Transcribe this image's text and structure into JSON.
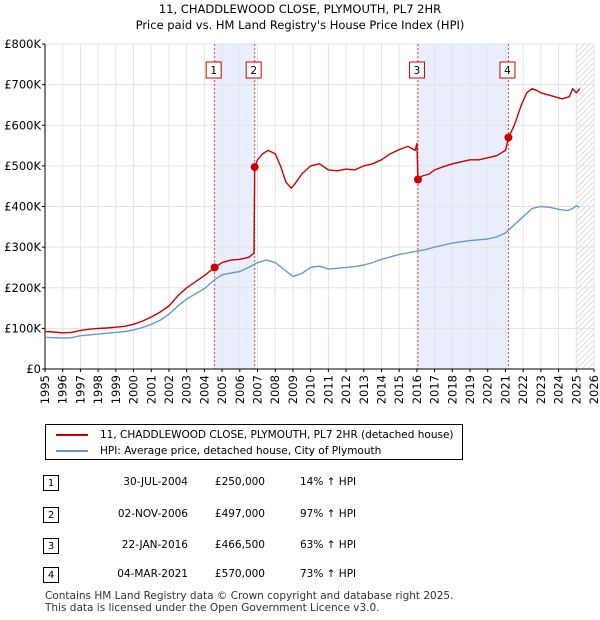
{
  "chart_data": {
    "type": "line",
    "title": "11, CHADDLEWOOD CLOSE, PLYMOUTH, PL7 2HR",
    "subtitle": "Price paid vs. HM Land Registry's House Price Index (HPI)",
    "xlim": [
      1995,
      2026
    ],
    "ylim": [
      0,
      800000
    ],
    "x_ticks": [
      "1995",
      "1996",
      "1997",
      "1998",
      "1999",
      "2000",
      "2001",
      "2002",
      "2003",
      "2004",
      "2005",
      "2006",
      "2007",
      "2008",
      "2009",
      "2010",
      "2011",
      "2012",
      "2013",
      "2014",
      "2015",
      "2016",
      "2017",
      "2018",
      "2019",
      "2020",
      "2021",
      "2022",
      "2023",
      "2024",
      "2025",
      "2026"
    ],
    "y_ticks": [
      {
        "value": 0,
        "label": "£0"
      },
      {
        "value": 100000,
        "label": "£100K"
      },
      {
        "value": 200000,
        "label": "£200K"
      },
      {
        "value": 300000,
        "label": "£300K"
      },
      {
        "value": 400000,
        "label": "£400K"
      },
      {
        "value": 500000,
        "label": "£500K"
      },
      {
        "value": 600000,
        "label": "£600K"
      },
      {
        "value": 700000,
        "label": "£700K"
      },
      {
        "value": 800000,
        "label": "£800K"
      }
    ],
    "grid": true,
    "forecast_start": 2025.0,
    "shaded_periods": [
      [
        2004.58,
        2006.84
      ],
      [
        2016.06,
        2021.17
      ]
    ],
    "series": [
      {
        "name": "11, CHADDLEWOOD CLOSE, PLYMOUTH, PL7 2HR (detached house)",
        "color": "#cc0000",
        "x": [
          1995.0,
          1995.5,
          1996.0,
          1996.5,
          1997.0,
          1997.5,
          1998.0,
          1998.5,
          1999.0,
          1999.5,
          2000.0,
          2000.5,
          2001.0,
          2001.5,
          2002.0,
          2002.5,
          2003.0,
          2003.5,
          2004.0,
          2004.58,
          2005.0,
          2005.5,
          2006.0,
          2006.5,
          2006.8,
          2006.84,
          2007.0,
          2007.3,
          2007.6,
          2008.0,
          2008.3,
          2008.6,
          2008.9,
          2009.1,
          2009.5,
          2010.0,
          2010.5,
          2011.0,
          2011.5,
          2012.0,
          2012.5,
          2013.0,
          2013.5,
          2014.0,
          2014.5,
          2015.0,
          2015.5,
          2015.9,
          2016.0,
          2016.06,
          2016.3,
          2016.7,
          2017.0,
          2017.5,
          2018.0,
          2018.5,
          2019.0,
          2019.5,
          2020.0,
          2020.5,
          2021.0,
          2021.17,
          2021.5,
          2021.9,
          2022.2,
          2022.5,
          2022.8,
          2023.0,
          2023.4,
          2023.8,
          2024.2,
          2024.6,
          2024.8,
          2025.0,
          2025.2
        ],
        "y": [
          92000,
          91000,
          89000,
          90000,
          95000,
          98000,
          100000,
          101000,
          103000,
          105000,
          110000,
          118000,
          128000,
          140000,
          155000,
          180000,
          200000,
          215000,
          230000,
          250000,
          262000,
          268000,
          270000,
          275000,
          285000,
          497000,
          515000,
          530000,
          538000,
          530000,
          500000,
          460000,
          445000,
          455000,
          480000,
          500000,
          505000,
          490000,
          488000,
          492000,
          490000,
          500000,
          505000,
          515000,
          530000,
          540000,
          548000,
          538000,
          555000,
          466500,
          475000,
          480000,
          490000,
          498000,
          505000,
          510000,
          515000,
          515000,
          520000,
          525000,
          538000,
          570000,
          600000,
          650000,
          680000,
          690000,
          685000,
          680000,
          675000,
          670000,
          665000,
          670000,
          690000,
          680000,
          690000
        ]
      },
      {
        "name": "HPI: Average price, detached house, City of Plymouth",
        "color": "#6699cc",
        "x": [
          1995.0,
          1995.5,
          1996.0,
          1996.5,
          1997.0,
          1997.5,
          1998.0,
          1998.5,
          1999.0,
          1999.5,
          2000.0,
          2000.5,
          2001.0,
          2001.5,
          2002.0,
          2002.5,
          2003.0,
          2003.5,
          2004.0,
          2004.58,
          2005.0,
          2005.5,
          2006.0,
          2006.5,
          2007.0,
          2007.5,
          2008.0,
          2008.5,
          2009.0,
          2009.5,
          2010.0,
          2010.5,
          2011.0,
          2011.5,
          2012.0,
          2012.5,
          2013.0,
          2013.5,
          2014.0,
          2014.5,
          2015.0,
          2015.5,
          2016.0,
          2016.5,
          2017.0,
          2017.5,
          2018.0,
          2018.5,
          2019.0,
          2019.5,
          2020.0,
          2020.5,
          2021.0,
          2021.5,
          2022.0,
          2022.5,
          2023.0,
          2023.5,
          2024.0,
          2024.5,
          2024.8,
          2025.0,
          2025.2
        ],
        "y": [
          78000,
          77000,
          76000,
          77000,
          82000,
          84000,
          86000,
          88000,
          90000,
          92000,
          96000,
          102000,
          110000,
          120000,
          135000,
          155000,
          172000,
          185000,
          198000,
          220000,
          232000,
          236000,
          240000,
          250000,
          262000,
          268000,
          262000,
          245000,
          228000,
          235000,
          250000,
          253000,
          246000,
          248000,
          250000,
          252000,
          256000,
          262000,
          270000,
          276000,
          282000,
          286000,
          290000,
          294000,
          300000,
          305000,
          310000,
          313000,
          316000,
          318000,
          320000,
          325000,
          335000,
          355000,
          375000,
          395000,
          400000,
          398000,
          393000,
          390000,
          395000,
          402000,
          398000
        ]
      }
    ],
    "sales": [
      {
        "marker": "1",
        "x": 2004.58,
        "price": 250000
      },
      {
        "marker": "2",
        "x": 2006.84,
        "price": 497000
      },
      {
        "marker": "3",
        "x": 2016.06,
        "price": 466500
      },
      {
        "marker": "4",
        "x": 2021.17,
        "price": 570000
      }
    ]
  },
  "legend": {
    "property": "11, CHADDLEWOOD CLOSE, PLYMOUTH, PL7 2HR (detached house)",
    "hpi": "HPI: Average price, detached house, City of Plymouth"
  },
  "transactions": [
    {
      "marker": "1",
      "date": "30-JUL-2004",
      "price": "£250,000",
      "hpi": "14% ↑ HPI"
    },
    {
      "marker": "2",
      "date": "02-NOV-2006",
      "price": "£497,000",
      "hpi": "97% ↑ HPI"
    },
    {
      "marker": "3",
      "date": "22-JAN-2016",
      "price": "£466,500",
      "hpi": "63% ↑ HPI"
    },
    {
      "marker": "4",
      "date": "04-MAR-2021",
      "price": "£570,000",
      "hpi": "73% ↑ HPI"
    }
  ],
  "footer": {
    "line1": "Contains HM Land Registry data © Crown copyright and database right 2025.",
    "line2": "This data is licensed under the Open Government Licence v3.0."
  }
}
